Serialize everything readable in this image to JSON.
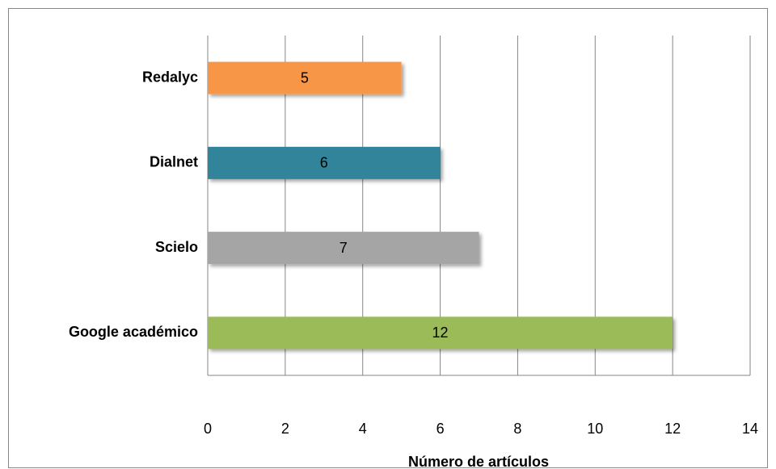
{
  "chart_data": {
    "type": "barh",
    "categories": [
      "Redalyc",
      "Dialnet",
      "Scielo",
      "Google académico"
    ],
    "values": [
      5,
      6,
      7,
      12
    ],
    "colors": [
      "#f79646",
      "#31849b",
      "#a5a5a5",
      "#9bbb59"
    ],
    "xlabel": "Número de artículos",
    "xlim": [
      0,
      14
    ],
    "xticks": [
      0,
      2,
      4,
      6,
      8,
      10,
      12,
      14
    ],
    "grid": true
  }
}
